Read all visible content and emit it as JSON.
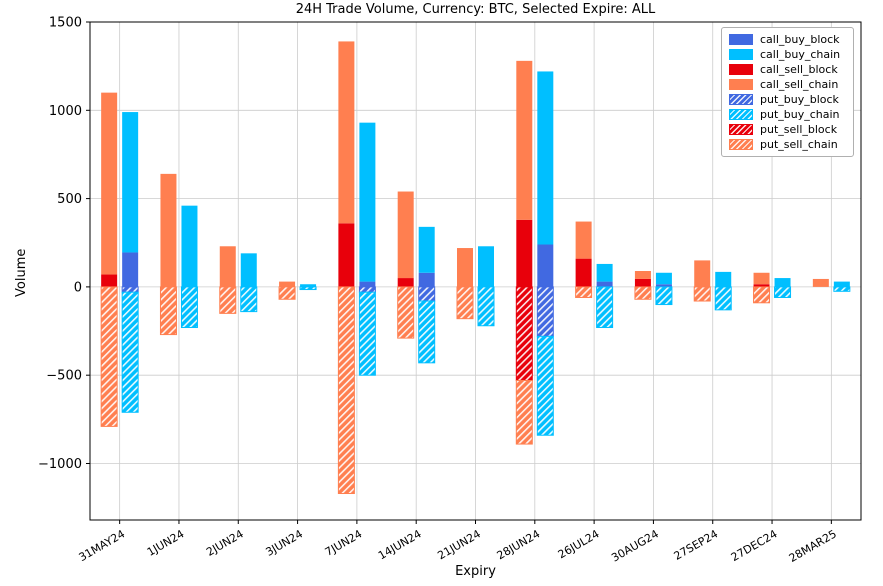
{
  "chart_data": {
    "type": "bar",
    "stacked": true,
    "title": "24H Trade Volume, Currency: BTC, Selected Expire: ALL",
    "xlabel": "Expiry",
    "ylabel": "Volume",
    "ylim": [
      -1320,
      1500
    ],
    "yticks": [
      -1000,
      -500,
      0,
      500,
      1000,
      1500
    ],
    "grid": true,
    "legend_position": "upper right",
    "categories": [
      "31MAY24",
      "1JUN24",
      "2JUN24",
      "3JUN24",
      "7JUN24",
      "14JUN24",
      "21JUN24",
      "28JUN24",
      "26JUL24",
      "30AUG24",
      "27SEP24",
      "27DEC24",
      "28MAR25"
    ],
    "legend": [
      "call_buy_block",
      "call_buy_chain",
      "call_sell_block",
      "call_sell_chain",
      "put_buy_block",
      "put_buy_chain",
      "put_sell_block",
      "put_sell_chain"
    ],
    "styles": {
      "call_buy_block": {
        "color": "#4169e1",
        "hatch": false
      },
      "call_buy_chain": {
        "color": "#00bfff",
        "hatch": false
      },
      "call_sell_block": {
        "color": "#e8000b",
        "hatch": false
      },
      "call_sell_chain": {
        "color": "#ff7f50",
        "hatch": false
      },
      "put_buy_block": {
        "color": "#4169e1",
        "hatch": true
      },
      "put_buy_chain": {
        "color": "#00bfff",
        "hatch": true
      },
      "put_sell_block": {
        "color": "#e8000b",
        "hatch": true
      },
      "put_sell_chain": {
        "color": "#ff7f50",
        "hatch": true
      }
    },
    "series": [
      {
        "name": "call_sell_block",
        "bar": "sell",
        "values": [
          70,
          0,
          0,
          0,
          360,
          50,
          0,
          380,
          160,
          45,
          0,
          15,
          0
        ]
      },
      {
        "name": "call_sell_chain",
        "bar": "sell",
        "values": [
          1030,
          640,
          230,
          30,
          1030,
          490,
          220,
          900,
          210,
          45,
          150,
          65,
          45
        ]
      },
      {
        "name": "put_sell_block",
        "bar": "sell",
        "values": [
          0,
          0,
          0,
          0,
          0,
          0,
          0,
          -530,
          0,
          0,
          0,
          0,
          0
        ]
      },
      {
        "name": "put_sell_chain",
        "bar": "sell",
        "values": [
          -790,
          -270,
          -150,
          -70,
          -1170,
          -290,
          -180,
          -360,
          -60,
          -70,
          -80,
          -90,
          0
        ]
      },
      {
        "name": "call_buy_block",
        "bar": "buy",
        "values": [
          195,
          0,
          0,
          0,
          30,
          80,
          0,
          240,
          30,
          15,
          0,
          0,
          0
        ]
      },
      {
        "name": "call_buy_chain",
        "bar": "buy",
        "values": [
          795,
          460,
          190,
          15,
          900,
          260,
          230,
          980,
          100,
          65,
          85,
          50,
          30
        ]
      },
      {
        "name": "put_buy_block",
        "bar": "buy",
        "values": [
          -30,
          0,
          0,
          0,
          -30,
          -80,
          0,
          -280,
          0,
          0,
          0,
          0,
          0
        ]
      },
      {
        "name": "put_buy_chain",
        "bar": "buy",
        "values": [
          -680,
          -230,
          -140,
          -15,
          -470,
          -350,
          -220,
          -560,
          -230,
          -100,
          -130,
          -60,
          -25
        ]
      }
    ]
  }
}
